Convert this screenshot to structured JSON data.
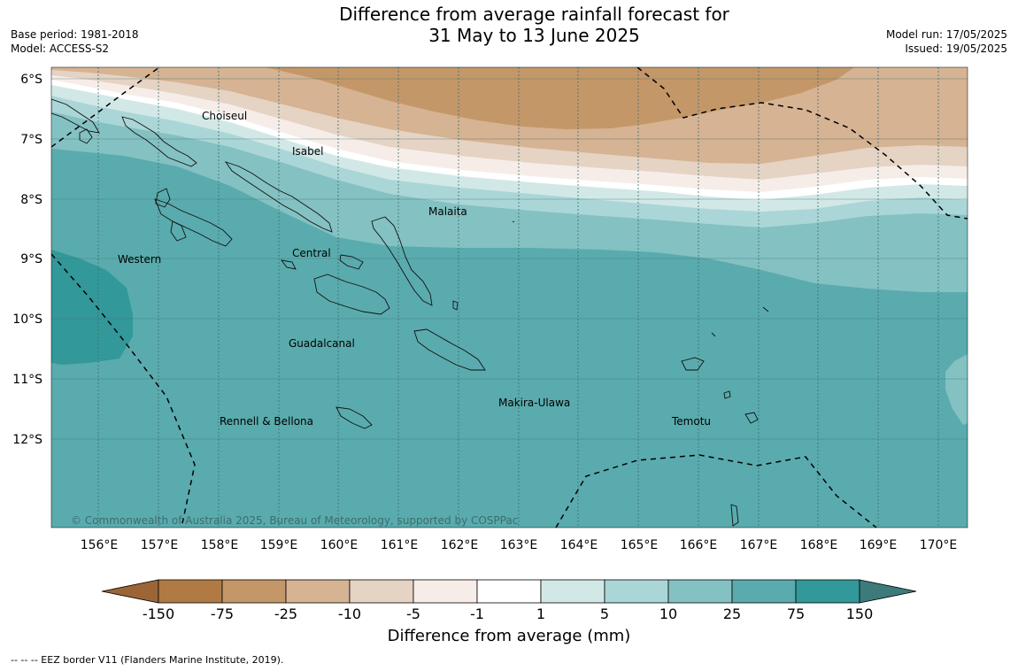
{
  "title": {
    "line1": "Difference from average rainfall forecast for",
    "line2": "31 May to 13 June 2025"
  },
  "meta": {
    "base_period": "Base period: 1981-2018",
    "model": "Model: ACCESS-S2",
    "model_run": "Model run: 17/05/2025",
    "issued": "Issued: 19/05/2025"
  },
  "map": {
    "lat_labels": [
      "6°S",
      "7°S",
      "8°S",
      "9°S",
      "10°S",
      "11°S",
      "12°S"
    ],
    "lon_labels": [
      "156°E",
      "157°E",
      "158°E",
      "159°E",
      "160°E",
      "161°E",
      "162°E",
      "163°E",
      "164°E",
      "165°E",
      "166°E",
      "167°E",
      "168°E",
      "169°E",
      "170°E"
    ],
    "regions": [
      "Choiseul",
      "Isabel",
      "Malaita",
      "Western",
      "Central",
      "Guadalcanal",
      "Makira-Ulawa",
      "Rennell & Bellona",
      "Temotu"
    ],
    "copyright": "© Commonwealth of Australia 2025, Bureau of Meteorology, supported by COSPPac"
  },
  "colorbar": {
    "tick_labels": [
      "-150",
      "-75",
      "-25",
      "-10",
      "-5",
      "-1",
      "1",
      "5",
      "10",
      "25",
      "75",
      "150"
    ],
    "colors": [
      "#9c6535",
      "#b07a45",
      "#c49769",
      "#d5b393",
      "#e5d3c4",
      "#f6ede9",
      "#ffffff",
      "#d2e8e7",
      "#abd6d7",
      "#84c1c2",
      "#5aabad",
      "#32989a",
      "#3d7a7b"
    ],
    "title": "Difference from average (mm)"
  },
  "footnote": "--  --  -- EEZ border V11 (Flanders Marine Institute, 2019)."
}
